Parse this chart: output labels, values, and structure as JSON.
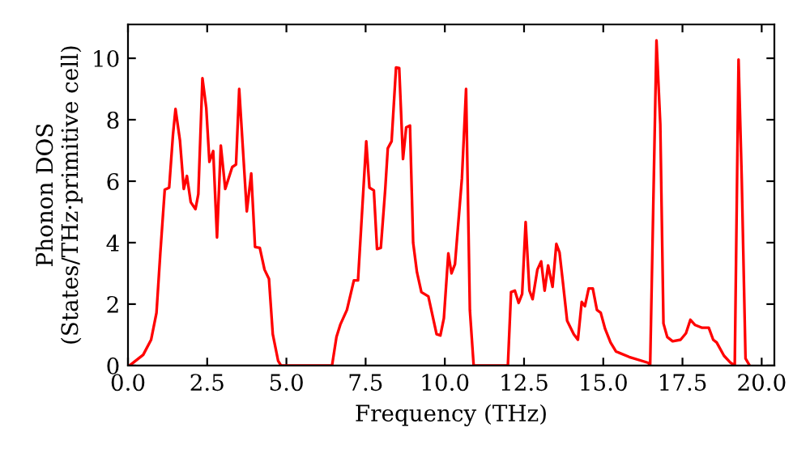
{
  "chart_data": {
    "type": "line",
    "xlabel": "Frequency (THz)",
    "ylabel": "Phonon DOS\n(States/THz·primitive cell)",
    "xlim": [
      0,
      20.4
    ],
    "ylim": [
      0,
      11.1
    ],
    "xticks": [
      {
        "value": 0,
        "label": "0.0"
      },
      {
        "value": 2.5,
        "label": "2.5"
      },
      {
        "value": 5,
        "label": "5.0"
      },
      {
        "value": 7.5,
        "label": "7.5"
      },
      {
        "value": 10,
        "label": "10.0"
      },
      {
        "value": 12.5,
        "label": "12.5"
      },
      {
        "value": 15,
        "label": "15.0"
      },
      {
        "value": 17.5,
        "label": "17.5"
      },
      {
        "value": 20,
        "label": "20.0"
      }
    ],
    "yticks": [
      0,
      2,
      4,
      6,
      8,
      10
    ],
    "grid": false,
    "marker": "none",
    "line_style": "solid",
    "series": [
      {
        "color": "#ff0000",
        "x": [
          0.05,
          0.48,
          0.73,
          0.9,
          1.02,
          1.16,
          1.3,
          1.42,
          1.5,
          1.64,
          1.76,
          1.86,
          1.98,
          2.13,
          2.22,
          2.35,
          2.47,
          2.57,
          2.69,
          2.81,
          2.93,
          3.07,
          3.29,
          3.41,
          3.51,
          3.75,
          3.89,
          4.01,
          4.16,
          4.31,
          4.45,
          4.57,
          4.74,
          4.83,
          6.44,
          6.58,
          6.7,
          6.91,
          7.13,
          7.26,
          7.52,
          7.62,
          7.76,
          7.86,
          7.98,
          8.12,
          8.2,
          8.32,
          8.46,
          8.56,
          8.68,
          8.78,
          8.9,
          9.0,
          9.12,
          9.26,
          9.48,
          9.74,
          9.86,
          9.97,
          10.11,
          10.21,
          10.32,
          10.54,
          10.67,
          10.79,
          10.91,
          11.99,
          12.09,
          12.21,
          12.33,
          12.44,
          12.55,
          12.67,
          12.77,
          12.92,
          13.04,
          13.15,
          13.26,
          13.4,
          13.52,
          13.62,
          13.72,
          13.86,
          14.07,
          14.2,
          14.32,
          14.42,
          14.54,
          14.67,
          14.8,
          14.92,
          15.06,
          15.23,
          15.4,
          15.82,
          16.42,
          16.48,
          16.68,
          16.8,
          16.9,
          17.02,
          17.19,
          17.44,
          17.61,
          17.75,
          17.9,
          18.12,
          18.33,
          18.47,
          18.58,
          18.81,
          19.01,
          19.15,
          19.27,
          19.37,
          19.49,
          19.62
        ],
        "values": [
          0,
          0.35,
          0.84,
          1.72,
          3.65,
          5.72,
          5.79,
          7.51,
          8.35,
          7.33,
          5.75,
          6.17,
          5.32,
          5.09,
          5.58,
          9.35,
          8.39,
          6.63,
          6.98,
          4.17,
          7.16,
          5.75,
          6.46,
          6.54,
          9.0,
          5.02,
          6.25,
          3.86,
          3.83,
          3.12,
          2.82,
          1.02,
          0.15,
          0,
          0,
          0.93,
          1.33,
          1.81,
          2.77,
          2.77,
          7.3,
          5.79,
          5.7,
          3.79,
          3.83,
          5.75,
          7.07,
          7.3,
          9.7,
          9.68,
          6.72,
          7.75,
          7.81,
          4.0,
          3.04,
          2.39,
          2.25,
          1.02,
          0.98,
          1.54,
          3.65,
          3.0,
          3.3,
          6.1,
          9.0,
          1.81,
          0,
          0,
          2.39,
          2.44,
          2.04,
          2.33,
          4.67,
          2.44,
          2.16,
          3.12,
          3.39,
          2.44,
          3.26,
          2.56,
          3.96,
          3.68,
          2.77,
          1.46,
          1.02,
          0.84,
          2.07,
          1.93,
          2.51,
          2.51,
          1.81,
          1.72,
          1.19,
          0.75,
          0.46,
          0.28,
          0.09,
          0,
          10.58,
          7.86,
          1.37,
          0.93,
          0.79,
          0.84,
          1.05,
          1.49,
          1.32,
          1.23,
          1.23,
          0.84,
          0.75,
          0.32,
          0.1,
          0,
          9.96,
          6.1,
          0.23,
          0
        ]
      }
    ]
  }
}
